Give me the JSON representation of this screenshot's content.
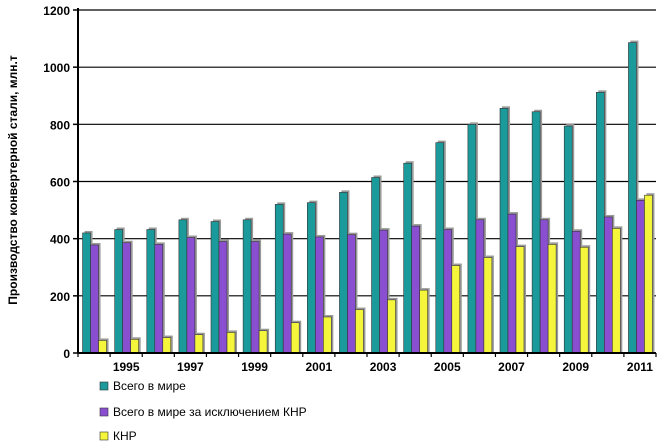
{
  "chart_data": {
    "type": "bar",
    "title": "",
    "ylabel": "Производство конвертерной стали, млн.т",
    "xlabel": "",
    "ylim": [
      0,
      1200
    ],
    "yticks": [
      0,
      200,
      400,
      600,
      800,
      1000,
      1200
    ],
    "categories": [
      "1994",
      "1995",
      "1996",
      "1997",
      "1998",
      "1999",
      "2000",
      "2001",
      "2002",
      "2003",
      "2004",
      "2005",
      "2006",
      "2007",
      "2008",
      "2009",
      "2010",
      "2011"
    ],
    "xtick_labels": [
      "",
      "1995",
      "",
      "1997",
      "",
      "1999",
      "",
      "2001",
      "",
      "2003",
      "",
      "2005",
      "",
      "2007",
      "",
      "2009",
      "",
      "2011"
    ],
    "grid": "horizontal",
    "legend_position": "bottom",
    "series": [
      {
        "name": "Всего в мире",
        "color": "#1a9a9a",
        "values": [
          420,
          432,
          432,
          466,
          460,
          466,
          520,
          526,
          562,
          614,
          664,
          736,
          800,
          856,
          844,
          794,
          912,
          1086
        ]
      },
      {
        "name": "Всего в мире за исключением КНР",
        "color": "#8a4fd0",
        "values": [
          378,
          386,
          380,
          404,
          390,
          390,
          416,
          406,
          414,
          430,
          444,
          432,
          466,
          486,
          466,
          426,
          476,
          534
        ]
      },
      {
        "name": "КНР",
        "color": "#f5f53c",
        "values": [
          44,
          48,
          54,
          64,
          72,
          78,
          106,
          126,
          152,
          186,
          220,
          306,
          334,
          372,
          380,
          370,
          436,
          552
        ]
      }
    ]
  }
}
